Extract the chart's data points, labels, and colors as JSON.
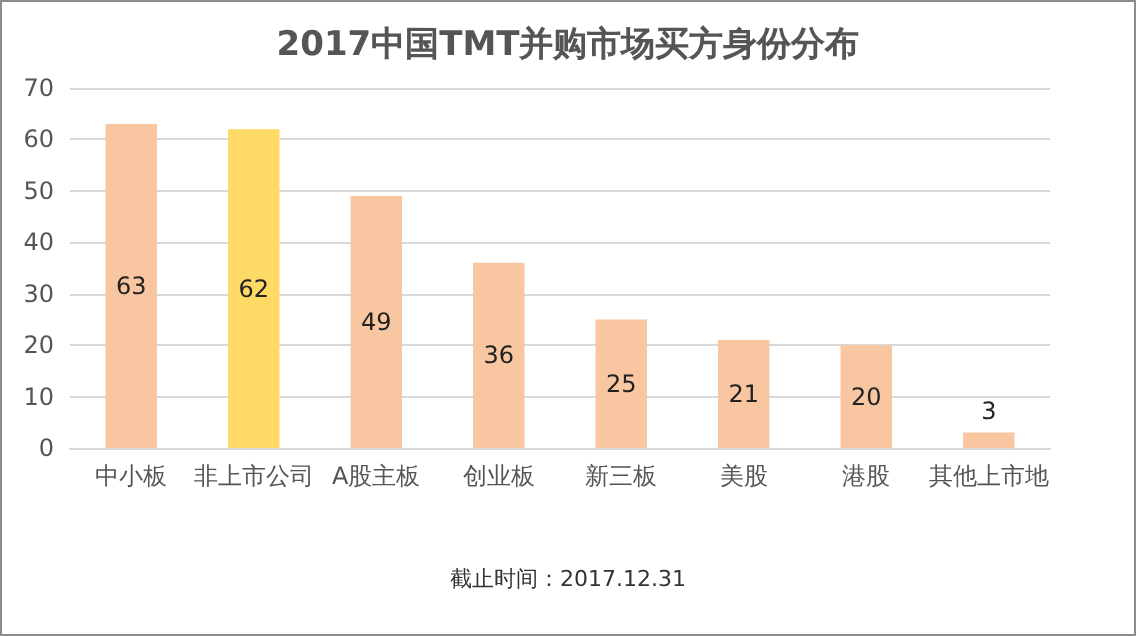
{
  "chart_data": {
    "type": "bar",
    "title": "2017中国TMT并购市场买方身份分布",
    "categories": [
      "中小板",
      "非上市公司",
      "A股主板",
      "创业板",
      "新三板",
      "美股",
      "港股",
      "其他上市地"
    ],
    "values": [
      63,
      62,
      49,
      36,
      25,
      21,
      20,
      3
    ],
    "colors": [
      "#f8c6a0",
      "#ffd966",
      "#f8c6a0",
      "#f8c6a0",
      "#f8c6a0",
      "#f8c6a0",
      "#f8c6a0",
      "#f8c6a0"
    ],
    "ylim": [
      0,
      70
    ],
    "yticks": [
      0,
      10,
      20,
      30,
      40,
      50,
      60,
      70
    ],
    "grid": "y",
    "data_labels": true,
    "annotations": [
      "截止时间：2017.12.31"
    ]
  }
}
